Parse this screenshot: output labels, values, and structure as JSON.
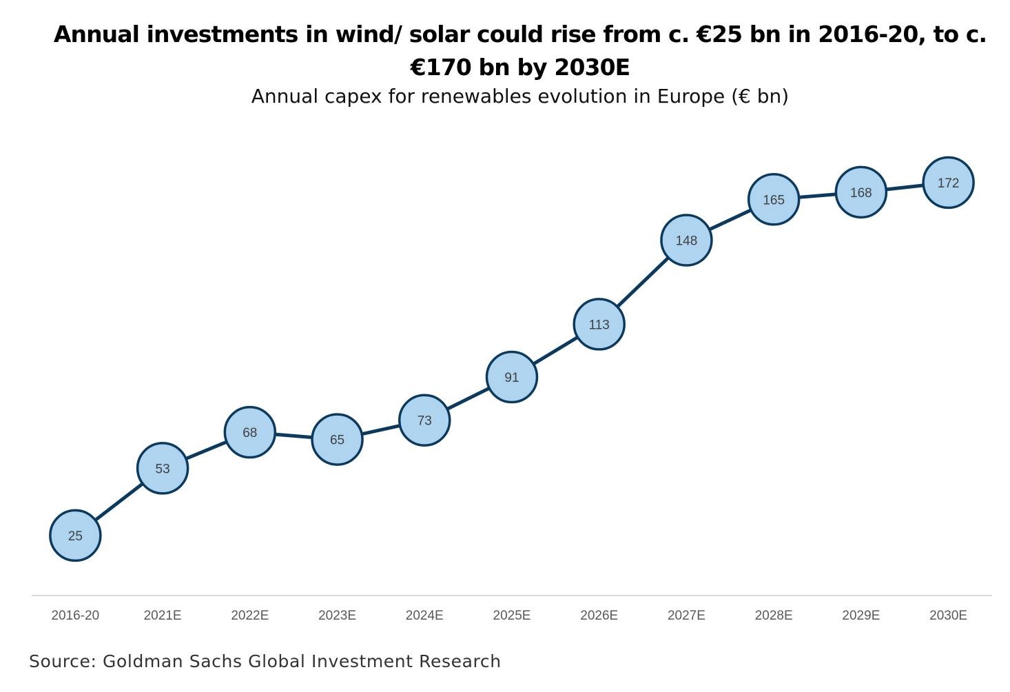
{
  "chart_data": {
    "type": "line",
    "title": "Annual investments in wind/ solar could rise from c. €25 bn in 2016-20, to c. €170 bn by 2030E",
    "subtitle": "Annual capex for renewables evolution in Europe (€ bn)",
    "xlabel": "",
    "ylabel": "",
    "categories": [
      "2016-20",
      "2021E",
      "2022E",
      "2023E",
      "2024E",
      "2025E",
      "2026E",
      "2027E",
      "2028E",
      "2029E",
      "2030E"
    ],
    "series": [
      {
        "name": "Annual capex for renewables (€ bn)",
        "values": [
          25,
          53,
          68,
          65,
          73,
          91,
          113,
          148,
          165,
          168,
          172
        ],
        "data_labels": [
          "25",
          "53",
          "68",
          "65",
          "73",
          "91",
          "113",
          "148",
          "165",
          "168",
          "172"
        ]
      }
    ],
    "ylim": [
      0,
      200
    ],
    "y_axis_visible": false,
    "grid": false,
    "legend": "none",
    "colors": {
      "line": "#0B3A5E",
      "marker_fill": "#AED4F0",
      "marker_stroke": "#0B3A5E",
      "axis": "#D9D9D9",
      "tick_label": "#595959",
      "data_label": "#404040"
    },
    "source": "Source: Goldman Sachs Global Investment Research"
  }
}
